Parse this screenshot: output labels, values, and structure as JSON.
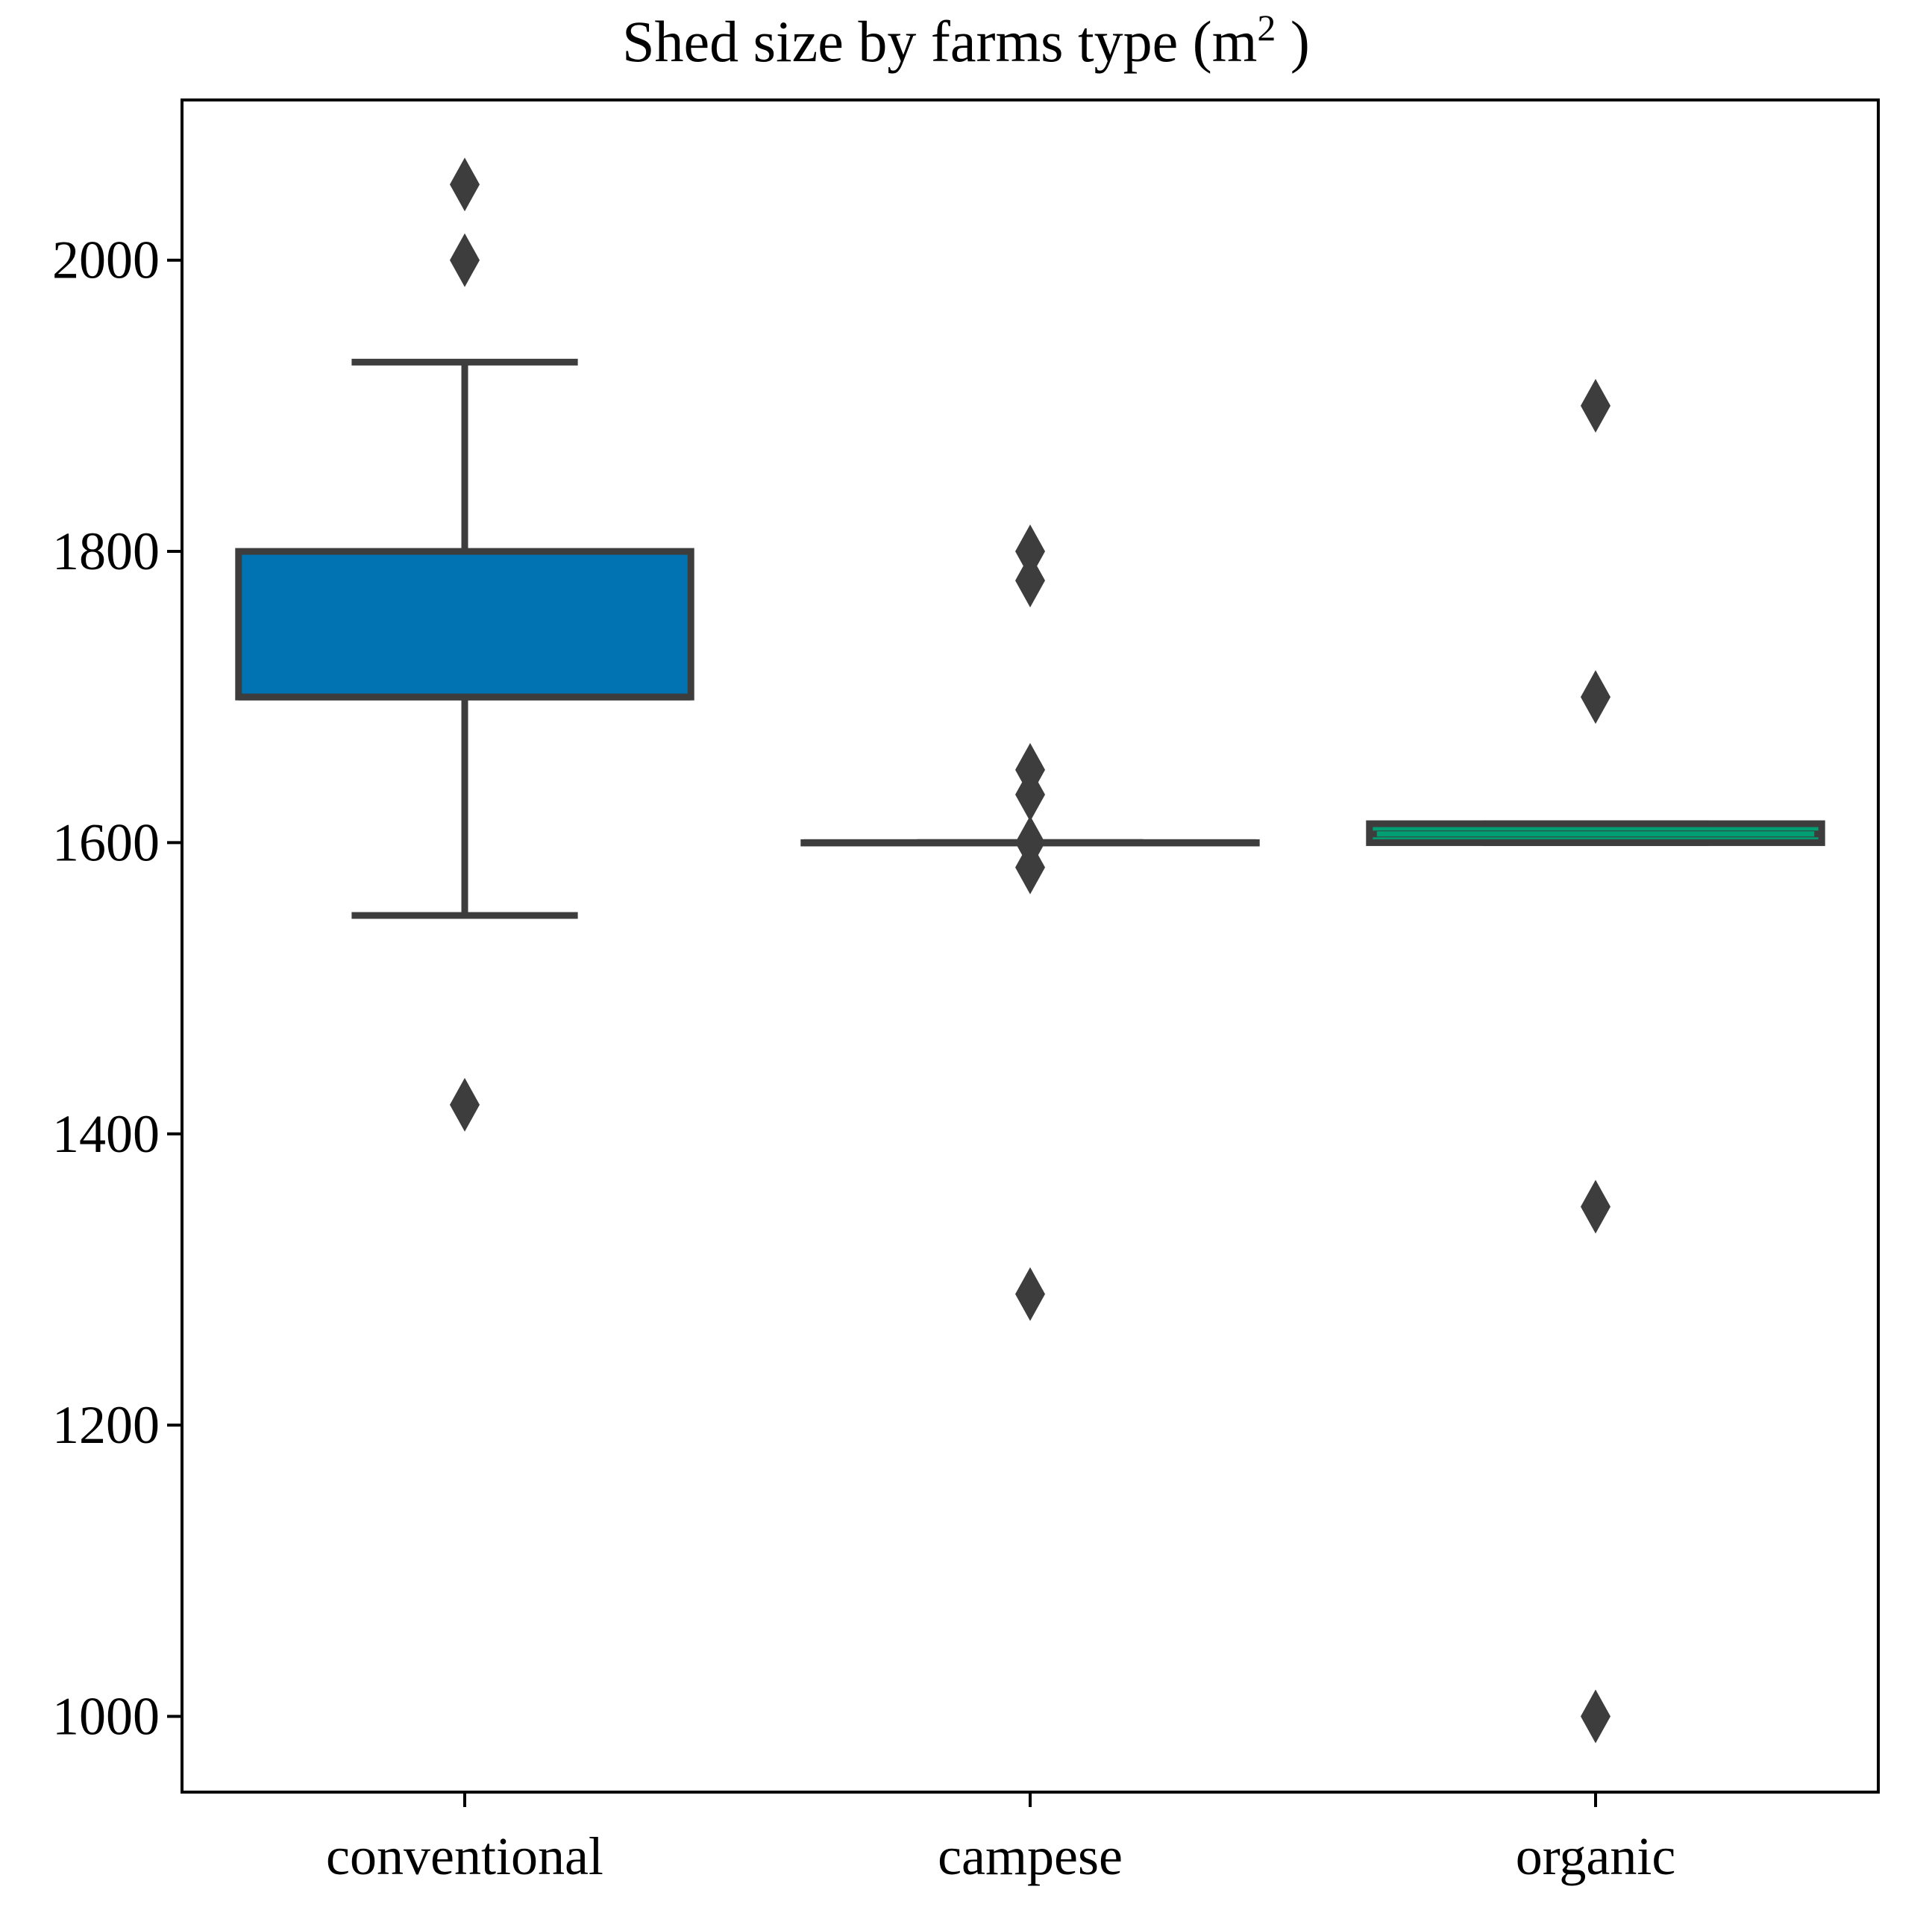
{
  "chart_data": {
    "type": "box",
    "title": "Shed size by farms type (m",
    "title_superscript": "2",
    "title_suffix": " )",
    "xlabel": "",
    "ylabel": "",
    "ylim": [
      948,
      2110
    ],
    "yticks": [
      1000,
      1200,
      1400,
      1600,
      1800,
      2000
    ],
    "ytick_labels": [
      "1000",
      "1200",
      "1400",
      "1600",
      "1800",
      "2000"
    ],
    "grid": false,
    "categories": [
      "conventional",
      "campese",
      "organic"
    ],
    "boxes": [
      {
        "category": "conventional",
        "q1": 1700,
        "median": 1700,
        "q3": 1800,
        "whisker_low": 1550,
        "whisker_high": 1930,
        "outliers": [
          2052,
          2000,
          1420
        ],
        "fill": "#0173b2"
      },
      {
        "category": "campese",
        "q1": 1600,
        "median": 1600,
        "q3": 1600,
        "whisker_low": 1600,
        "whisker_high": 1600,
        "outliers": [
          1800,
          1780,
          1650,
          1633,
          1600,
          1583,
          1290
        ],
        "fill": "#de8f05"
      },
      {
        "category": "organic",
        "q1": 1600,
        "median": 1606,
        "q3": 1613,
        "whisker_low": 1600,
        "whisker_high": 1613,
        "outliers": [
          1900,
          1700,
          1350,
          1000
        ],
        "fill": "#029e73"
      }
    ],
    "line_color": "#3d3d3d",
    "outlier_color": "#3d3d3d"
  }
}
